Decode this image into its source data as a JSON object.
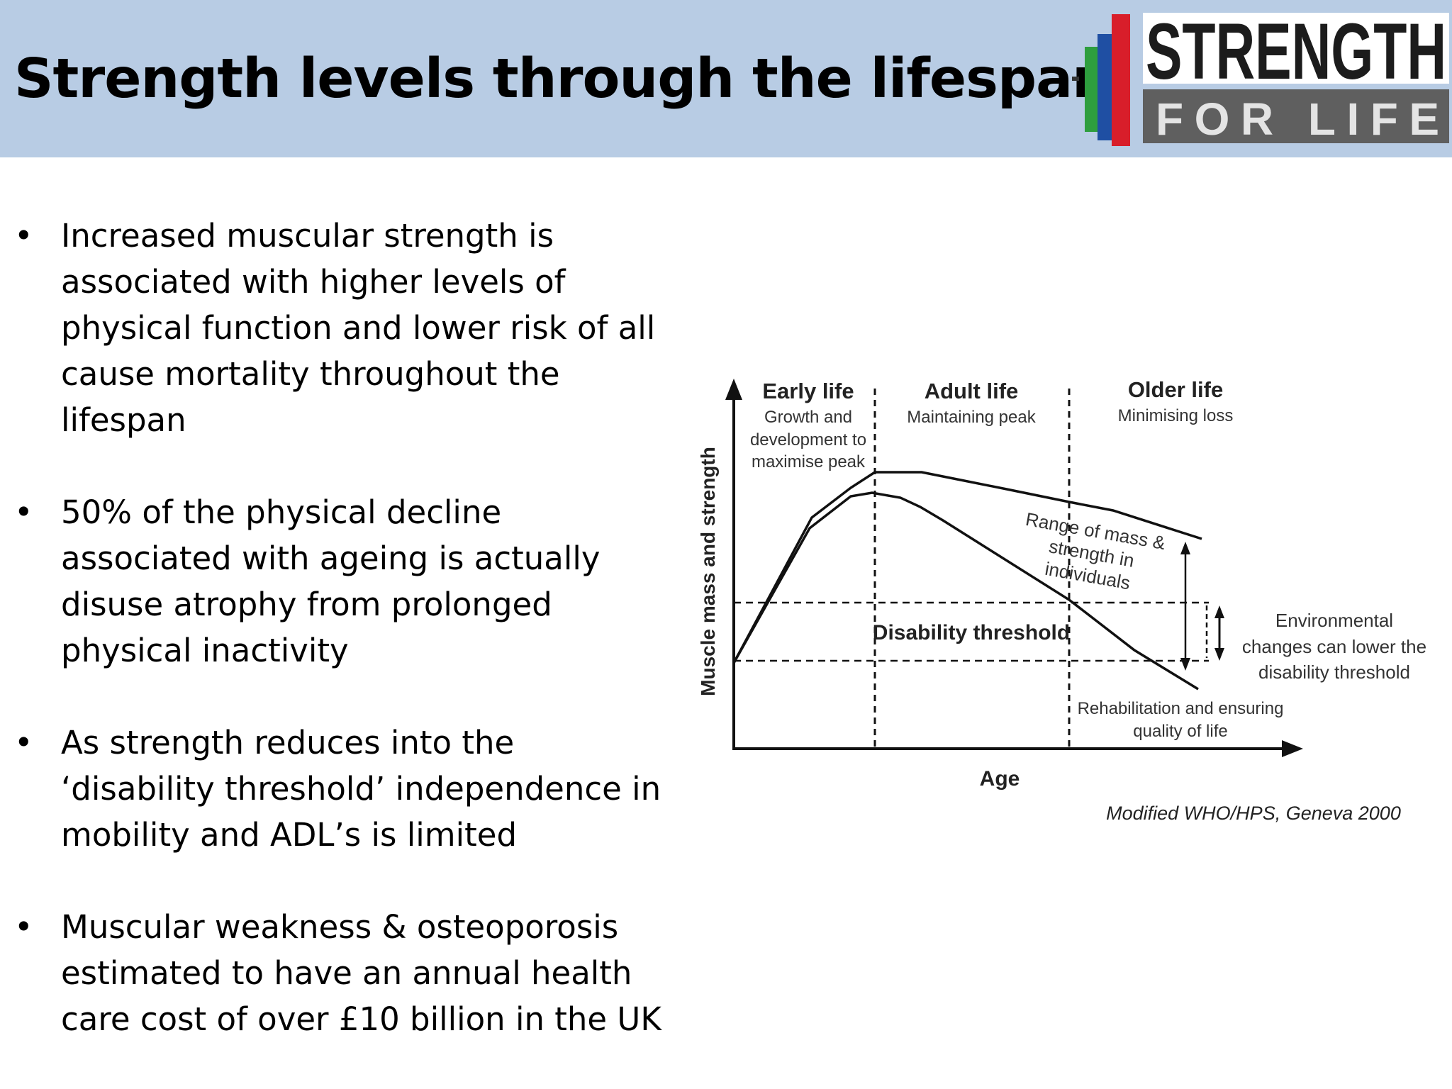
{
  "slide": {
    "title": "Strength levels through the lifespan"
  },
  "logo": {
    "line1": "STRENGTH",
    "line2": "FOR LIFE",
    "colors": {
      "green": "#2e9e3e",
      "blue": "#1f4fa3",
      "red": "#d81e2a",
      "grey": "#5f5f5f",
      "light": "#dcdcdc"
    }
  },
  "bullets": [
    {
      "text": "Increased muscular strength is associated with higher levels of physical function and lower risk of all cause mortality throughout the lifespan"
    },
    {
      "text": "50% of the physical decline associated with ageing is actually disuse atrophy from prolonged physical inactivity"
    },
    {
      "text": "As strength reduces into the ‘disability threshold’ independence in mobility and ADL’s is limited"
    },
    {
      "text": "Muscular weakness & osteoporosis estimated to have an annual health care cost of over £10 billion in the UK"
    }
  ],
  "diagram": {
    "y_axis_label": "Muscle mass and strength",
    "x_axis_label": "Age",
    "phases": [
      {
        "title": "Early life",
        "lines": [
          "Growth and",
          "development to",
          "maximise peak"
        ]
      },
      {
        "title": "Adult life",
        "lines": [
          "Maintaining peak"
        ]
      },
      {
        "title": "Older life",
        "lines": [
          "Minimising loss"
        ]
      }
    ],
    "range_label": [
      "Range of mass &",
      "strength in",
      "individuals"
    ],
    "threshold_label": "Disability threshold",
    "environment_label": [
      "Environmental",
      "changes can lower the",
      "disability threshold"
    ],
    "rehab_label": [
      "Rehabilitation and ensuring",
      "quality of life"
    ],
    "source": "Modified WHO/HPS, Geneva 2000"
  }
}
